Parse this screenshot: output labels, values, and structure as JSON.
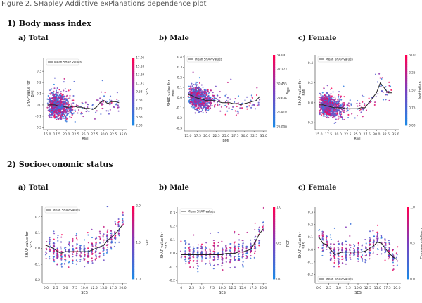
{
  "caption": "Figure 2. SHapley Addictive exPlanations dependence plot",
  "sections": [
    {
      "title": "1)   Body mass index"
    },
    {
      "title": "2)   Socioeconomic status"
    }
  ],
  "colors": {
    "low": "#1e88e5",
    "mid": "#7b3fbf",
    "high": "#ff0052",
    "line": "#222222"
  },
  "chart_data": [
    {
      "type": "scatter",
      "panel_label": "a) Total",
      "xlabel": "BMI",
      "ylabel": "SHAP value for BMI",
      "xlim": [
        14,
        36
      ],
      "ylim": [
        -0.22,
        0.42
      ],
      "xticks": [
        "15.0",
        "17.5",
        "20.0",
        "22.5",
        "25.0",
        "27.5",
        "30.0",
        "32.5",
        "35.0"
      ],
      "xtick_values": [
        15,
        17.5,
        20,
        22.5,
        25,
        27.5,
        30,
        32.5,
        35
      ],
      "yticks": [
        "-0.2",
        "-0.1",
        "0.0",
        "0.1",
        "0.2",
        "0.3"
      ],
      "ytick_values": [
        -0.2,
        -0.1,
        0,
        0.1,
        0.2,
        0.3
      ],
      "series": [
        {
          "name": "Mean SHAP values",
          "x": [
            15,
            17,
            18,
            19,
            20,
            21,
            22,
            23,
            24,
            25,
            26,
            27,
            28,
            29,
            30,
            31,
            32,
            33,
            34
          ],
          "y": [
            0.0,
            0.0,
            -0.01,
            -0.01,
            -0.02,
            -0.02,
            -0.01,
            -0.02,
            -0.02,
            -0.03,
            -0.03,
            -0.04,
            -0.02,
            0.02,
            0.04,
            0.01,
            0.03,
            0.03,
            0.02
          ]
        }
      ],
      "legend": "top-left",
      "colorbar": {
        "label": "SES",
        "ticks": [
          "17.06",
          "15.18",
          "13.29",
          "11.41",
          "9.53",
          "7.65",
          "5.76",
          "3.88",
          "2.00"
        ],
        "min": 2,
        "max": 17.06
      }
    },
    {
      "type": "scatter",
      "panel_label": "b) Male",
      "xlabel": "BMI",
      "ylabel": "SHAP value for BMI",
      "xlim": [
        14,
        36
      ],
      "ylim": [
        -0.33,
        0.42
      ],
      "xticks": [
        "15.0",
        "17.5",
        "20.0",
        "22.5",
        "25.0",
        "27.5",
        "30.0",
        "32.5",
        "35.0"
      ],
      "xtick_values": [
        15,
        17.5,
        20,
        22.5,
        25,
        27.5,
        30,
        32.5,
        35
      ],
      "yticks": [
        "-0.3",
        "-0.2",
        "-0.1",
        "0.0",
        "0.1",
        "0.2",
        "0.3",
        "0.4"
      ],
      "ytick_values": [
        -0.3,
        -0.2,
        -0.1,
        0,
        0.1,
        0.2,
        0.3,
        0.4
      ],
      "series": [
        {
          "name": "Mean SHAP values",
          "x": [
            15,
            16,
            17,
            18,
            19,
            20,
            21,
            22,
            23,
            24,
            25,
            26,
            27,
            28,
            29,
            30,
            31,
            32,
            33,
            34
          ],
          "y": [
            0.03,
            0.02,
            0.0,
            -0.01,
            -0.02,
            -0.03,
            -0.03,
            -0.03,
            -0.04,
            -0.05,
            -0.05,
            -0.05,
            -0.06,
            -0.06,
            -0.07,
            -0.06,
            -0.05,
            -0.04,
            -0.03,
            0.01
          ]
        }
      ],
      "legend": "top-left",
      "colorbar": {
        "label": "Age",
        "ticks": [
          "34.091",
          "32.273",
          "30.455",
          "28.636",
          "26.818",
          "25.000"
        ],
        "min": 25,
        "max": 34.091
      }
    },
    {
      "type": "scatter",
      "panel_label": "c) Female",
      "xlabel": "BMI",
      "ylabel": "SHAP value for BMI",
      "xlim": [
        14,
        36
      ],
      "ylim": [
        -0.27,
        0.48
      ],
      "xticks": [
        "15.0",
        "17.5",
        "20.0",
        "22.5",
        "25.0",
        "27.5",
        "30.0",
        "32.5",
        "35.0"
      ],
      "xtick_values": [
        15,
        17.5,
        20,
        22.5,
        25,
        27.5,
        30,
        32.5,
        35
      ],
      "yticks": [
        "-0.2",
        "0.0",
        "0.2",
        "0.4"
      ],
      "ytick_values": [
        -0.2,
        0,
        0.2,
        0.4
      ],
      "series": [
        {
          "name": "Mean SHAP values",
          "x": [
            15,
            16,
            17,
            18,
            19,
            20,
            21,
            22,
            23,
            24,
            25,
            26,
            27,
            28,
            29,
            30,
            31,
            32,
            33,
            34
          ],
          "y": [
            -0.02,
            -0.02,
            -0.03,
            -0.04,
            -0.05,
            -0.05,
            -0.05,
            -0.06,
            -0.06,
            -0.06,
            -0.06,
            -0.05,
            -0.05,
            0.0,
            0.05,
            0.1,
            0.2,
            0.15,
            0.1,
            0.1
          ]
        }
      ],
      "legend": "top-left",
      "colorbar": {
        "label": "Institution",
        "ticks": [
          "3.00",
          "2.25",
          "1.50",
          "0.75",
          "0.00"
        ],
        "min": 0,
        "max": 3
      }
    },
    {
      "type": "scatter",
      "panel_label": "a) Total",
      "xlabel": "SES",
      "ylabel": "SHAP value for SES",
      "xlim": [
        -1,
        21
      ],
      "ylim": [
        -0.22,
        0.27
      ],
      "xticks": [
        "0.0",
        "2.5",
        "5.0",
        "7.5",
        "10.0",
        "12.5",
        "15.0",
        "17.5",
        "20.0"
      ],
      "xtick_values": [
        0,
        2.5,
        5,
        7.5,
        10,
        12.5,
        15,
        17.5,
        20
      ],
      "yticks": [
        "-0.2",
        "-0.1",
        "0.0",
        "0.1",
        "0.2"
      ],
      "ytick_values": [
        -0.2,
        -0.1,
        0,
        0.1,
        0.2
      ],
      "series": [
        {
          "name": "Mean SHAP values",
          "x": [
            0,
            1,
            2,
            3,
            4,
            5,
            6,
            7,
            8,
            9,
            10,
            11,
            12,
            13,
            14,
            15,
            16,
            17,
            18,
            19,
            20
          ],
          "y": [
            0.02,
            0.01,
            0.0,
            -0.02,
            -0.03,
            -0.02,
            -0.02,
            -0.02,
            -0.02,
            -0.02,
            -0.02,
            -0.02,
            -0.01,
            0.0,
            0.01,
            0.02,
            0.05,
            0.07,
            0.09,
            0.12,
            0.15
          ]
        }
      ],
      "legend": "top-left",
      "colorbar": {
        "label": "Sex",
        "ticks": [
          "2.0",
          "1.5",
          "1.0"
        ],
        "min": 1,
        "max": 2
      }
    },
    {
      "type": "scatter",
      "panel_label": "b) Male",
      "xlabel": "SES",
      "ylabel": "SHAP value for SES",
      "xlim": [
        -1,
        21
      ],
      "ylim": [
        -0.22,
        0.34
      ],
      "xticks": [
        "0",
        "2.5",
        "5.0",
        "7.5",
        "10.0",
        "12.5",
        "15.0",
        "17.5",
        "20.0"
      ],
      "xtick_values": [
        0,
        2.5,
        5,
        7.5,
        10,
        12.5,
        15,
        17.5,
        20
      ],
      "yticks": [
        "-0.2",
        "-0.1",
        "0.0",
        "0.1",
        "0.2",
        "0.3"
      ],
      "ytick_values": [
        -0.2,
        -0.1,
        0,
        0.1,
        0.2,
        0.3
      ],
      "series": [
        {
          "name": "Mean SHAP values",
          "x": [
            0,
            1,
            2,
            3,
            4,
            5,
            6,
            7,
            8,
            9,
            10,
            11,
            12,
            13,
            14,
            15,
            16,
            17,
            18,
            19,
            20
          ],
          "y": [
            -0.01,
            -0.01,
            -0.01,
            -0.01,
            -0.01,
            -0.01,
            -0.01,
            -0.01,
            -0.01,
            -0.01,
            -0.01,
            0.0,
            0.0,
            0.0,
            0.01,
            0.01,
            0.02,
            0.03,
            0.08,
            0.14,
            0.18
          ]
        }
      ],
      "legend": "top-left",
      "colorbar": {
        "label": "PGR",
        "ticks": [
          "1.0",
          "0.5",
          "0.0"
        ],
        "min": 0,
        "max": 1
      }
    },
    {
      "type": "scatter",
      "panel_label": "c) Female",
      "xlabel": "SES",
      "ylabel": "SHAP value for SES",
      "xlim": [
        -1,
        21
      ],
      "ylim": [
        -0.27,
        0.34
      ],
      "xticks": [
        "0.0",
        "2.5",
        "5.0",
        "7.5",
        "10.0",
        "12.5",
        "15.0",
        "17.5",
        "20.0"
      ],
      "xtick_values": [
        0,
        2.5,
        5,
        7.5,
        10,
        12.5,
        15,
        17.5,
        20
      ],
      "yticks": [
        "-0.2",
        "-0.1",
        "0.0",
        "0.1",
        "0.2",
        "0.3"
      ],
      "ytick_values": [
        -0.2,
        -0.1,
        0,
        0.1,
        0.2,
        0.3
      ],
      "series": [
        {
          "name": "Mean SHAP values",
          "x": [
            0,
            1,
            2,
            3,
            4,
            5,
            6,
            7,
            8,
            9,
            10,
            11,
            12,
            13,
            14,
            15,
            16,
            17,
            18,
            19,
            20
          ],
          "y": [
            0.1,
            0.05,
            0.04,
            0.0,
            -0.04,
            -0.03,
            -0.02,
            -0.02,
            -0.02,
            -0.02,
            -0.02,
            -0.02,
            -0.01,
            0.01,
            0.03,
            0.06,
            0.05,
            0.01,
            -0.03,
            -0.06,
            -0.08
          ]
        }
      ],
      "legend": "bottom-left",
      "colorbar": {
        "label": "Cesarean delivery",
        "ticks": [
          "1.0",
          "0.5",
          "0.0"
        ],
        "min": 0,
        "max": 1
      }
    }
  ]
}
